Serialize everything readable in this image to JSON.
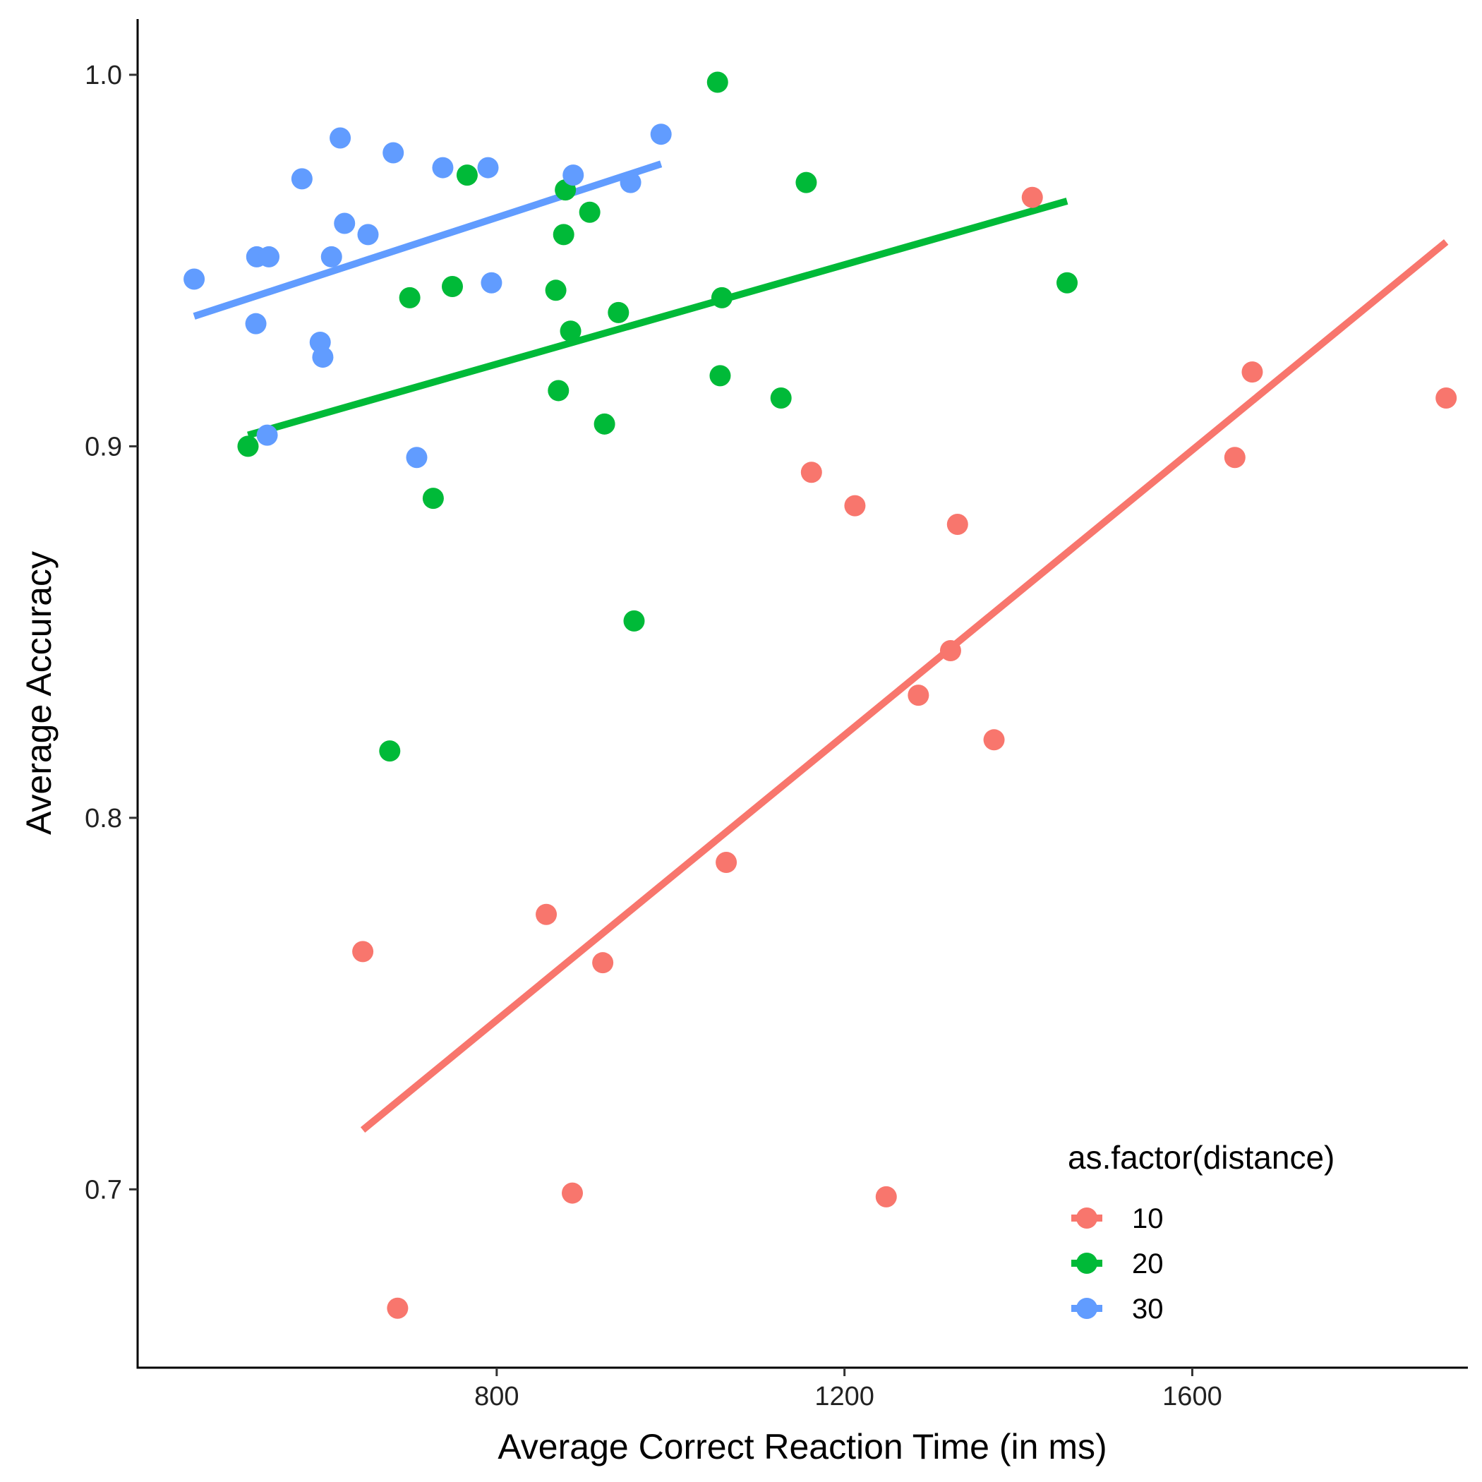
{
  "chart_data": {
    "type": "scatter",
    "xlabel": "Average Correct Reaction Time (in ms)",
    "ylabel": "Average Accuracy",
    "xlim": [
      387,
      1917
    ],
    "ylim": [
      0.652,
      1.015
    ],
    "x_ticks": [
      800,
      1200,
      1600
    ],
    "x_tick_labels": [
      "800",
      "1200",
      "1600"
    ],
    "y_ticks": [
      0.7,
      0.8,
      0.9,
      1.0
    ],
    "y_tick_labels": [
      "0.7",
      "0.8",
      "0.9",
      "1.0"
    ],
    "grid": false,
    "legend": {
      "title": "as.factor(distance)",
      "position": "bottom-right",
      "labels": [
        "10",
        "20",
        "30"
      ]
    },
    "series": [
      {
        "name": "10",
        "color": "#F8766D",
        "points": [
          [
            1416,
            0.967
          ],
          [
            1669,
            0.92
          ],
          [
            1892,
            0.913
          ],
          [
            1649,
            0.897
          ],
          [
            1162,
            0.893
          ],
          [
            1212,
            0.884
          ],
          [
            1330,
            0.879
          ],
          [
            1322,
            0.845
          ],
          [
            1285,
            0.833
          ],
          [
            1372,
            0.821
          ],
          [
            1064,
            0.788
          ],
          [
            857,
            0.774
          ],
          [
            646,
            0.764
          ],
          [
            922,
            0.761
          ],
          [
            887,
            0.699
          ],
          [
            1248,
            0.698
          ],
          [
            686,
            0.668
          ]
        ],
        "fit": [
          [
            646,
            0.716
          ],
          [
            1892,
            0.955
          ]
        ]
      },
      {
        "name": "20",
        "color": "#00BA38",
        "points": [
          [
            1054,
            0.998
          ],
          [
            1156,
            0.971
          ],
          [
            766,
            0.973
          ],
          [
            879,
            0.969
          ],
          [
            907,
            0.963
          ],
          [
            877,
            0.957
          ],
          [
            1456,
            0.944
          ],
          [
            749,
            0.943
          ],
          [
            868,
            0.942
          ],
          [
            1059,
            0.94
          ],
          [
            700,
            0.94
          ],
          [
            940,
            0.936
          ],
          [
            885,
            0.931
          ],
          [
            1057,
            0.919
          ],
          [
            871,
            0.915
          ],
          [
            1127,
            0.913
          ],
          [
            924,
            0.906
          ],
          [
            514,
            0.9
          ],
          [
            727,
            0.886
          ],
          [
            958,
            0.853
          ],
          [
            677,
            0.818
          ]
        ],
        "fit": [
          [
            514,
            0.903
          ],
          [
            1456,
            0.966
          ]
        ]
      },
      {
        "name": "30",
        "color": "#619CFF",
        "points": [
          [
            989,
            0.984
          ],
          [
            620,
            0.983
          ],
          [
            681,
            0.979
          ],
          [
            738,
            0.975
          ],
          [
            790,
            0.975
          ],
          [
            888,
            0.973
          ],
          [
            576,
            0.972
          ],
          [
            954,
            0.971
          ],
          [
            625,
            0.96
          ],
          [
            652,
            0.957
          ],
          [
            524,
            0.951
          ],
          [
            538,
            0.951
          ],
          [
            610,
            0.951
          ],
          [
            452,
            0.945
          ],
          [
            794,
            0.944
          ],
          [
            523,
            0.933
          ],
          [
            597,
            0.928
          ],
          [
            600,
            0.924
          ],
          [
            536,
            0.903
          ],
          [
            708,
            0.897
          ]
        ],
        "fit": [
          [
            452,
            0.935
          ],
          [
            989,
            0.976
          ]
        ]
      }
    ]
  }
}
